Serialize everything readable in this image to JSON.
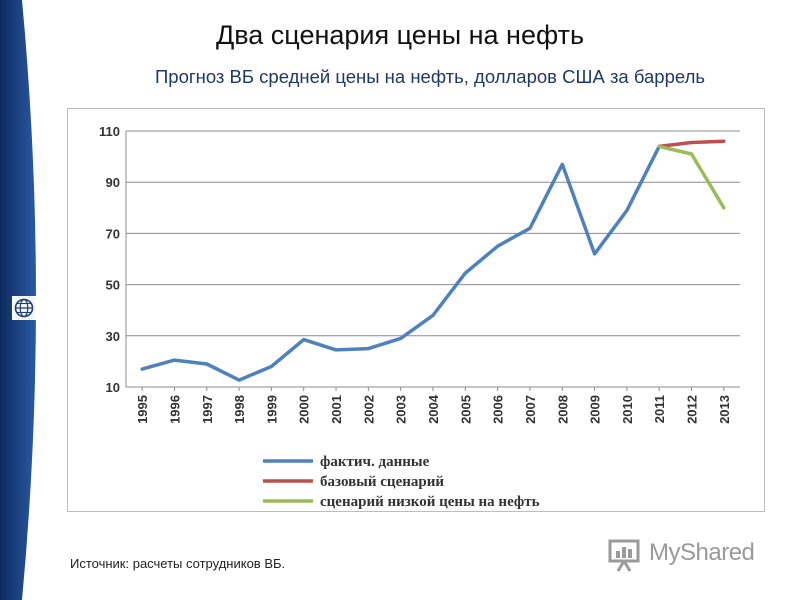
{
  "title": "Два сценария цены на нефть",
  "subtitle": "Прогноз ВБ средней цены на нефть, долларов США за баррель",
  "source": "Источник: расчеты сотрудников ВБ.",
  "watermark": "MyShared",
  "icons": {
    "logo": "world-bank-globe-icon",
    "watermark": "myshared-presentation-icon"
  },
  "colors": {
    "actual": "#4f81bd",
    "base": "#c0504d",
    "low": "#9bbb59",
    "band": "#1e3f7a"
  },
  "chart_data": {
    "type": "line",
    "categories": [
      "1995",
      "1996",
      "1997",
      "1998",
      "1999",
      "2000",
      "2001",
      "2002",
      "2003",
      "2004",
      "2005",
      "2006",
      "2007",
      "2008",
      "2009",
      "2010",
      "2011",
      "2012",
      "2013"
    ],
    "ylim": [
      10,
      110
    ],
    "yticks": [
      10,
      30,
      50,
      70,
      90,
      110
    ],
    "grid": true,
    "legend_position": "bottom-center",
    "series": [
      {
        "name": "фактич. данные",
        "color": "#4f81bd",
        "values": [
          17,
          20.5,
          19,
          12.7,
          18,
          28.5,
          24.5,
          25,
          29,
          38,
          54.5,
          65,
          72,
          97,
          62,
          79,
          104,
          null,
          null
        ]
      },
      {
        "name": "базовый сценарий",
        "color": "#c0504d",
        "values": [
          null,
          null,
          null,
          null,
          null,
          null,
          null,
          null,
          null,
          null,
          null,
          null,
          null,
          null,
          null,
          null,
          104,
          105.5,
          106
        ]
      },
      {
        "name": "сценарий низкой цены на нефть",
        "color": "#9bbb59",
        "values": [
          null,
          null,
          null,
          null,
          null,
          null,
          null,
          null,
          null,
          null,
          null,
          null,
          null,
          null,
          null,
          null,
          104,
          101,
          80
        ]
      }
    ]
  }
}
